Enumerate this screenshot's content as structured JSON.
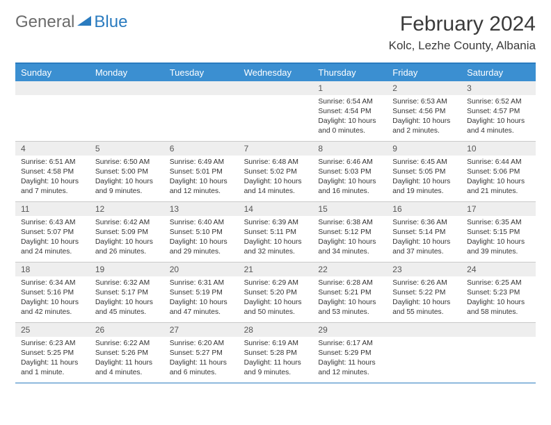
{
  "logo": {
    "text1": "General",
    "text2": "Blue"
  },
  "title": "February 2024",
  "subtitle": "Kolc, Lezhe County, Albania",
  "day_headers": [
    "Sunday",
    "Monday",
    "Tuesday",
    "Wednesday",
    "Thursday",
    "Friday",
    "Saturday"
  ],
  "colors": {
    "header_bar": "#3b8fd1",
    "accent_line": "#2a7bbf",
    "daynum_bg": "#eeeeee",
    "text": "#333333",
    "bg": "#ffffff"
  },
  "weeks": [
    [
      null,
      null,
      null,
      null,
      {
        "n": "1",
        "sr": "6:54 AM",
        "ss": "4:54 PM",
        "dl": "10 hours and 0 minutes."
      },
      {
        "n": "2",
        "sr": "6:53 AM",
        "ss": "4:56 PM",
        "dl": "10 hours and 2 minutes."
      },
      {
        "n": "3",
        "sr": "6:52 AM",
        "ss": "4:57 PM",
        "dl": "10 hours and 4 minutes."
      }
    ],
    [
      {
        "n": "4",
        "sr": "6:51 AM",
        "ss": "4:58 PM",
        "dl": "10 hours and 7 minutes."
      },
      {
        "n": "5",
        "sr": "6:50 AM",
        "ss": "5:00 PM",
        "dl": "10 hours and 9 minutes."
      },
      {
        "n": "6",
        "sr": "6:49 AM",
        "ss": "5:01 PM",
        "dl": "10 hours and 12 minutes."
      },
      {
        "n": "7",
        "sr": "6:48 AM",
        "ss": "5:02 PM",
        "dl": "10 hours and 14 minutes."
      },
      {
        "n": "8",
        "sr": "6:46 AM",
        "ss": "5:03 PM",
        "dl": "10 hours and 16 minutes."
      },
      {
        "n": "9",
        "sr": "6:45 AM",
        "ss": "5:05 PM",
        "dl": "10 hours and 19 minutes."
      },
      {
        "n": "10",
        "sr": "6:44 AM",
        "ss": "5:06 PM",
        "dl": "10 hours and 21 minutes."
      }
    ],
    [
      {
        "n": "11",
        "sr": "6:43 AM",
        "ss": "5:07 PM",
        "dl": "10 hours and 24 minutes."
      },
      {
        "n": "12",
        "sr": "6:42 AM",
        "ss": "5:09 PM",
        "dl": "10 hours and 26 minutes."
      },
      {
        "n": "13",
        "sr": "6:40 AM",
        "ss": "5:10 PM",
        "dl": "10 hours and 29 minutes."
      },
      {
        "n": "14",
        "sr": "6:39 AM",
        "ss": "5:11 PM",
        "dl": "10 hours and 32 minutes."
      },
      {
        "n": "15",
        "sr": "6:38 AM",
        "ss": "5:12 PM",
        "dl": "10 hours and 34 minutes."
      },
      {
        "n": "16",
        "sr": "6:36 AM",
        "ss": "5:14 PM",
        "dl": "10 hours and 37 minutes."
      },
      {
        "n": "17",
        "sr": "6:35 AM",
        "ss": "5:15 PM",
        "dl": "10 hours and 39 minutes."
      }
    ],
    [
      {
        "n": "18",
        "sr": "6:34 AM",
        "ss": "5:16 PM",
        "dl": "10 hours and 42 minutes."
      },
      {
        "n": "19",
        "sr": "6:32 AM",
        "ss": "5:17 PM",
        "dl": "10 hours and 45 minutes."
      },
      {
        "n": "20",
        "sr": "6:31 AM",
        "ss": "5:19 PM",
        "dl": "10 hours and 47 minutes."
      },
      {
        "n": "21",
        "sr": "6:29 AM",
        "ss": "5:20 PM",
        "dl": "10 hours and 50 minutes."
      },
      {
        "n": "22",
        "sr": "6:28 AM",
        "ss": "5:21 PM",
        "dl": "10 hours and 53 minutes."
      },
      {
        "n": "23",
        "sr": "6:26 AM",
        "ss": "5:22 PM",
        "dl": "10 hours and 55 minutes."
      },
      {
        "n": "24",
        "sr": "6:25 AM",
        "ss": "5:23 PM",
        "dl": "10 hours and 58 minutes."
      }
    ],
    [
      {
        "n": "25",
        "sr": "6:23 AM",
        "ss": "5:25 PM",
        "dl": "11 hours and 1 minute."
      },
      {
        "n": "26",
        "sr": "6:22 AM",
        "ss": "5:26 PM",
        "dl": "11 hours and 4 minutes."
      },
      {
        "n": "27",
        "sr": "6:20 AM",
        "ss": "5:27 PM",
        "dl": "11 hours and 6 minutes."
      },
      {
        "n": "28",
        "sr": "6:19 AM",
        "ss": "5:28 PM",
        "dl": "11 hours and 9 minutes."
      },
      {
        "n": "29",
        "sr": "6:17 AM",
        "ss": "5:29 PM",
        "dl": "11 hours and 12 minutes."
      },
      null,
      null
    ]
  ],
  "labels": {
    "sunrise": "Sunrise: ",
    "sunset": "Sunset: ",
    "daylight": "Daylight: "
  }
}
